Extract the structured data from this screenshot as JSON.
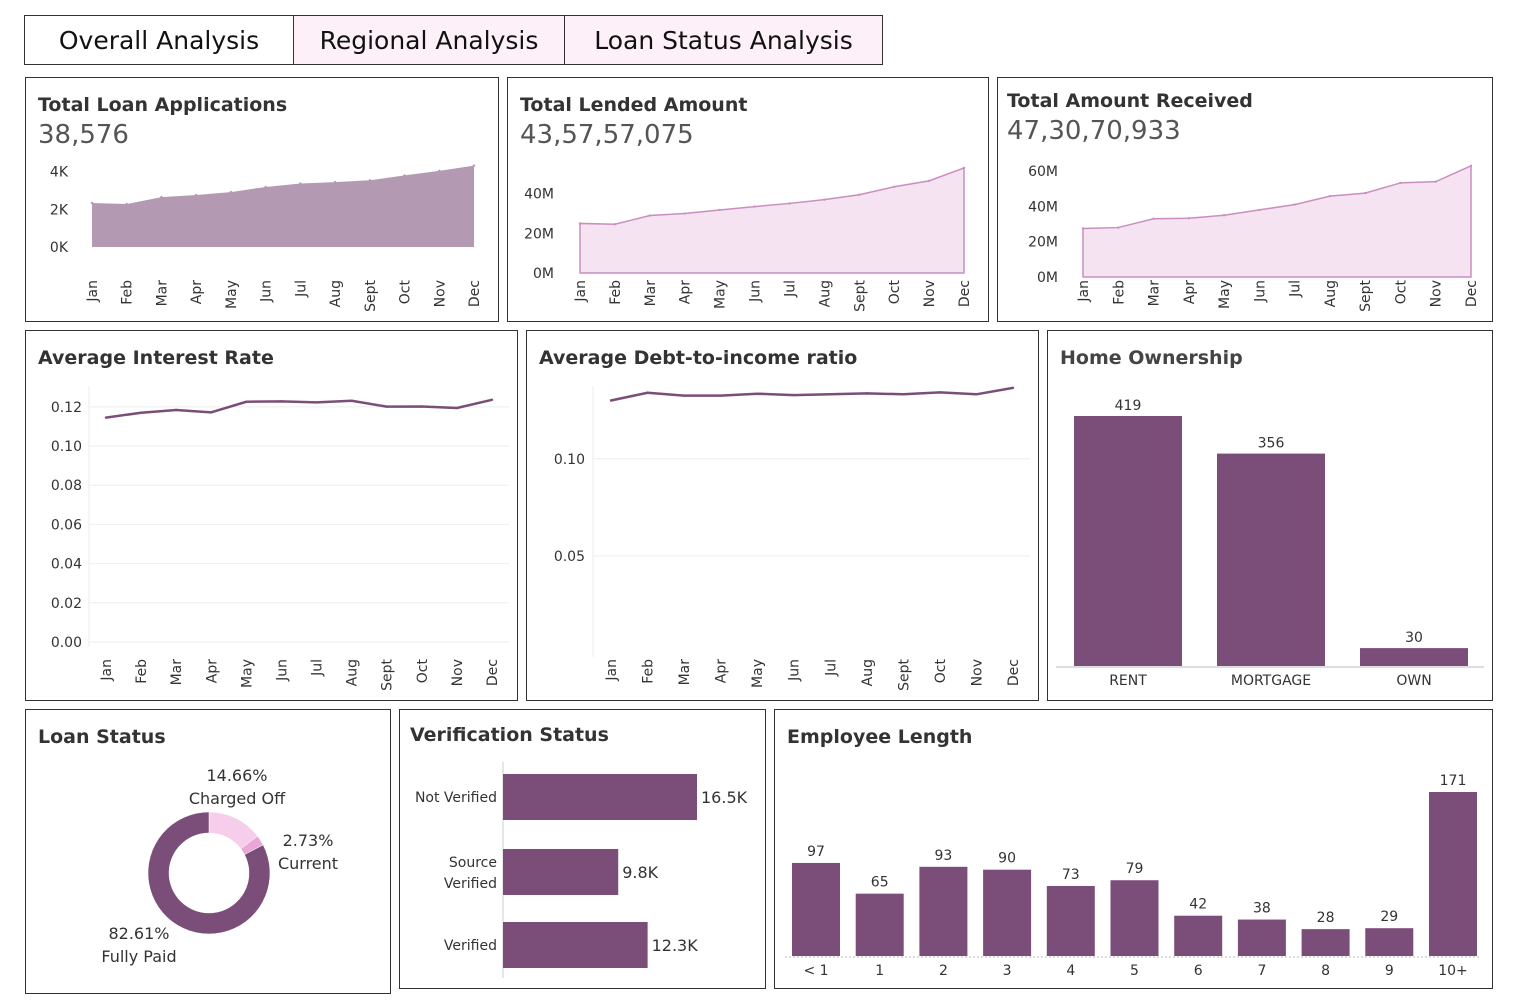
{
  "tabs": [
    {
      "label": "Overall Analysis"
    },
    {
      "label": "Regional Analysis"
    },
    {
      "label": "Loan Status Analysis"
    }
  ],
  "colors": {
    "purple": "#7b4e79",
    "mauve": "#b499b3",
    "pink_fill": "#f6e3f2",
    "pink_line": "#c98fbf",
    "donut_light": "#f7cdec",
    "donut_mid": "#e9a7d6"
  },
  "panels": {
    "applications": {
      "title": "Total Loan Applications",
      "value": "38,576"
    },
    "lended": {
      "title": "Total Lended Amount",
      "value": "43,57,57,075"
    },
    "received": {
      "title": "Total Amount Received",
      "value": "47,30,70,933"
    },
    "interest": {
      "title": "Average Interest Rate"
    },
    "dti": {
      "title": "Average Debt-to-income ratio"
    },
    "home": {
      "title": "Home Ownership"
    },
    "status": {
      "title": "Loan Status"
    },
    "verification": {
      "title": "Verification Status"
    },
    "employee": {
      "title": "Employee Length"
    }
  },
  "chart_data": [
    {
      "id": "applications",
      "type": "area",
      "title": "Total Loan Applications",
      "categories": [
        "Jan",
        "Feb",
        "Mar",
        "Apr",
        "May",
        "Jun",
        "Jul",
        "Aug",
        "Sept",
        "Oct",
        "Nov",
        "Dec"
      ],
      "values": [
        2332,
        2279,
        2644,
        2755,
        2911,
        3184,
        3366,
        3441,
        3536,
        3796,
        4035,
        4314
      ],
      "yticks": [
        {
          "v": 0,
          "label": "0K"
        },
        {
          "v": 2000,
          "label": "2K"
        },
        {
          "v": 4000,
          "label": "4K"
        }
      ],
      "ylim": [
        0,
        4400
      ]
    },
    {
      "id": "lended",
      "type": "area",
      "title": "Total Lended Amount",
      "categories": [
        "Jan",
        "Feb",
        "Mar",
        "Apr",
        "May",
        "Jun",
        "Jul",
        "Aug",
        "Sept",
        "Oct",
        "Nov",
        "Dec"
      ],
      "values": [
        25000000,
        24600000,
        29000000,
        30000000,
        31800000,
        33500000,
        35100000,
        37000000,
        39500000,
        43500000,
        46500000,
        53000000
      ],
      "yticks": [
        {
          "v": 0,
          "label": "0M"
        },
        {
          "v": 20000000,
          "label": "20M"
        },
        {
          "v": 40000000,
          "label": "40M"
        }
      ],
      "ylim": [
        0,
        55000000
      ]
    },
    {
      "id": "received",
      "type": "area",
      "title": "Total Amount Received",
      "categories": [
        "Jan",
        "Feb",
        "Mar",
        "Apr",
        "May",
        "Jun",
        "Jul",
        "Aug",
        "Sept",
        "Oct",
        "Nov",
        "Dec"
      ],
      "values": [
        27500000,
        28000000,
        33000000,
        33300000,
        35000000,
        38000000,
        41000000,
        45800000,
        47500000,
        53300000,
        54000000,
        63000000
      ],
      "yticks": [
        {
          "v": 0,
          "label": "0M"
        },
        {
          "v": 20000000,
          "label": "20M"
        },
        {
          "v": 40000000,
          "label": "40M"
        },
        {
          "v": 60000000,
          "label": "60M"
        }
      ],
      "ylim": [
        0,
        64000000
      ]
    },
    {
      "id": "interest",
      "type": "line",
      "title": "Average Interest Rate",
      "categories": [
        "Jan",
        "Feb",
        "Mar",
        "Apr",
        "May",
        "Jun",
        "Jul",
        "Aug",
        "Sept",
        "Oct",
        "Nov",
        "Dec"
      ],
      "values": [
        0.1145,
        0.117,
        0.1184,
        0.1172,
        0.1226,
        0.1228,
        0.1223,
        0.1231,
        0.1201,
        0.1202,
        0.1194,
        0.1236
      ],
      "yticks": [
        {
          "v": 0,
          "label": "0.00"
        },
        {
          "v": 0.02,
          "label": "0.02"
        },
        {
          "v": 0.04,
          "label": "0.04"
        },
        {
          "v": 0.06,
          "label": "0.06"
        },
        {
          "v": 0.08,
          "label": "0.08"
        },
        {
          "v": 0.1,
          "label": "0.10"
        },
        {
          "v": 0.12,
          "label": "0.12"
        }
      ],
      "ylim": [
        0,
        0.124
      ]
    },
    {
      "id": "dti",
      "type": "line",
      "title": "Average Debt-to-income ratio",
      "categories": [
        "Jan",
        "Feb",
        "Mar",
        "Apr",
        "May",
        "Jun",
        "Jul",
        "Aug",
        "Sept",
        "Oct",
        "Nov",
        "Dec"
      ],
      "values": [
        0.13,
        0.134,
        0.1325,
        0.1325,
        0.1335,
        0.1328,
        0.1332,
        0.1337,
        0.1332,
        0.1342,
        0.1332,
        0.1365
      ],
      "yticks": [
        {
          "v": 0.05,
          "label": "0.05"
        },
        {
          "v": 0.1,
          "label": "0.10"
        }
      ],
      "ylim": [
        0,
        0.1385
      ]
    },
    {
      "id": "home",
      "type": "bar",
      "title": "Home Ownership",
      "categories": [
        "RENT",
        "MORTGAGE",
        "OWN"
      ],
      "values": [
        419,
        356,
        30
      ],
      "ylim": [
        0,
        419
      ]
    },
    {
      "id": "status",
      "type": "pie",
      "title": "Loan Status",
      "slices": [
        {
          "name": "Charged Off",
          "percent": "14.66%",
          "value": 14.66
        },
        {
          "name": "Current",
          "percent": "2.73%",
          "value": 2.73
        },
        {
          "name": "Fully Paid",
          "percent": "82.61%",
          "value": 82.61
        }
      ]
    },
    {
      "id": "verification",
      "type": "bar",
      "title": "Verification Status",
      "categories": [
        "Not Verified",
        "Source Verified",
        "Verified"
      ],
      "values": [
        16500,
        9800,
        12300
      ],
      "labels": [
        "16.5K",
        "9.8K",
        "12.3K"
      ],
      "xlim": [
        0,
        16500
      ]
    },
    {
      "id": "employee",
      "type": "bar",
      "title": "Employee Length",
      "categories": [
        "< 1",
        "1",
        "2",
        "3",
        "4",
        "5",
        "6",
        "7",
        "8",
        "9",
        "10+"
      ],
      "values": [
        97,
        65,
        93,
        90,
        73,
        79,
        42,
        38,
        28,
        29,
        171
      ],
      "ylim": [
        0,
        171
      ]
    }
  ]
}
